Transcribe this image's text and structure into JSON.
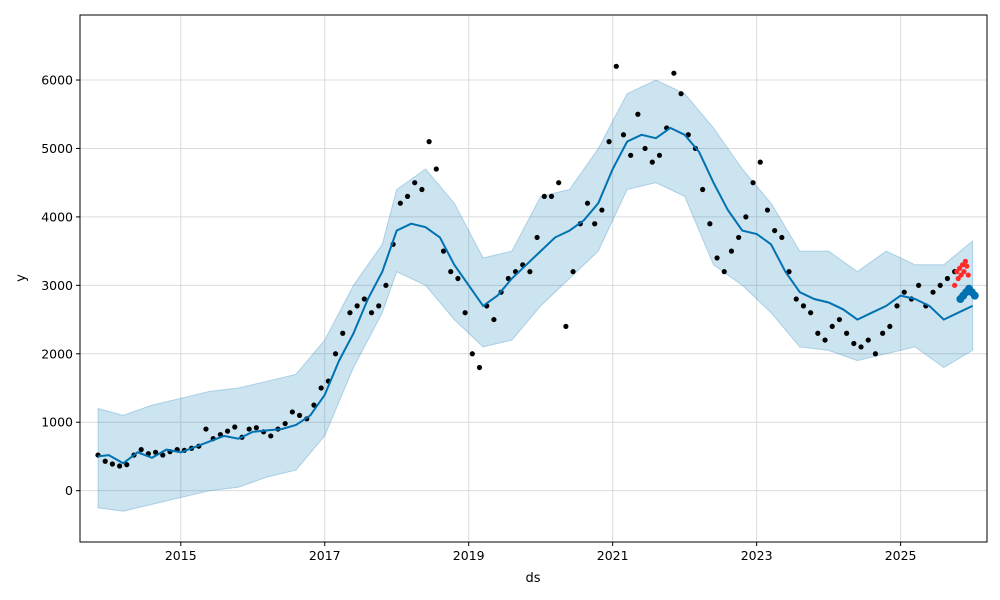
{
  "chart_data": {
    "type": "line",
    "title": "",
    "xlabel": "ds",
    "ylabel": "y",
    "xlim": [
      2013.6,
      2026.2
    ],
    "ylim": [
      -750,
      6950
    ],
    "grid": true,
    "x_ticks": [
      2015,
      2017,
      2019,
      2021,
      2023,
      2025
    ],
    "x_tick_labels": [
      "2015",
      "2017",
      "2019",
      "2021",
      "2023",
      "2025"
    ],
    "y_ticks": [
      0,
      1000,
      2000,
      3000,
      4000,
      5000,
      6000
    ],
    "y_tick_labels": [
      "0",
      "1000",
      "2000",
      "3000",
      "4000",
      "5000",
      "6000"
    ],
    "colors": {
      "actual": "#000000",
      "forecast": "#0072B2",
      "interval_fill": "#0072B2",
      "test_points": "#ff2a2a",
      "grid": "#dcdcdc"
    },
    "series": [
      {
        "kind": "observed_points",
        "x": [
          2013.85,
          2013.95,
          2014.05,
          2014.15,
          2014.25,
          2014.35,
          2014.45,
          2014.55,
          2014.65,
          2014.75,
          2014.85,
          2014.95,
          2015.05,
          2015.15,
          2015.25,
          2015.35,
          2015.45,
          2015.55,
          2015.65,
          2015.75,
          2015.85,
          2015.95,
          2016.05,
          2016.15,
          2016.25,
          2016.35,
          2016.45,
          2016.55,
          2016.65,
          2016.75,
          2016.85,
          2016.95,
          2017.05,
          2017.15,
          2017.25,
          2017.35,
          2017.45,
          2017.55,
          2017.65,
          2017.75,
          2017.85,
          2017.95,
          2018.05,
          2018.15,
          2018.25,
          2018.35,
          2018.45,
          2018.55,
          2018.65,
          2018.75,
          2018.85,
          2018.95,
          2019.05,
          2019.15,
          2019.25,
          2019.35,
          2019.45,
          2019.55,
          2019.65,
          2019.75,
          2019.85,
          2019.95,
          2020.05,
          2020.15,
          2020.25,
          2020.35,
          2020.45,
          2020.55,
          2020.65,
          2020.75,
          2020.85,
          2020.95,
          2021.05,
          2021.15,
          2021.25,
          2021.35,
          2021.45,
          2021.55,
          2021.65,
          2021.75,
          2021.85,
          2021.95,
          2022.05,
          2022.15,
          2022.25,
          2022.35,
          2022.45,
          2022.55,
          2022.65,
          2022.75,
          2022.85,
          2022.95,
          2023.05,
          2023.15,
          2023.25,
          2023.35,
          2023.45,
          2023.55,
          2023.65,
          2023.75,
          2023.85,
          2023.95,
          2024.05,
          2024.15,
          2024.25,
          2024.35,
          2024.45,
          2024.55,
          2024.65,
          2024.75,
          2024.85,
          2024.95,
          2025.05,
          2025.15,
          2025.25,
          2025.35,
          2025.45,
          2025.55,
          2025.65,
          2025.75
        ],
        "y": [
          520,
          430,
          390,
          360,
          380,
          520,
          600,
          540,
          560,
          520,
          570,
          600,
          590,
          620,
          650,
          900,
          760,
          820,
          870,
          930,
          780,
          900,
          920,
          860,
          800,
          900,
          980,
          1150,
          1100,
          1050,
          1250,
          1500,
          1600,
          2000,
          2300,
          2600,
          2700,
          2800,
          2600,
          2700,
          3000,
          3600,
          4200,
          4300,
          4500,
          4400,
          5100,
          4700,
          3500,
          3200,
          3100,
          2600,
          2000,
          1800,
          2700,
          2500,
          2900,
          3100,
          3200,
          3300,
          3200,
          3700,
          4300,
          4300,
          4500,
          2400,
          3200,
          3900,
          4200,
          3900,
          4100,
          5100,
          6200,
          5200,
          4900,
          5500,
          5000,
          4800,
          4900,
          5300,
          6100,
          5800,
          5200,
          5000,
          4400,
          3900,
          3400,
          3200,
          3500,
          3700,
          4000,
          4500,
          4800,
          4100,
          3800,
          3700,
          3200,
          2800,
          2700,
          2600,
          2300,
          2200,
          2400,
          2500,
          2300,
          2150,
          2100,
          2200,
          2000,
          2300,
          2400,
          2700,
          2900,
          2800,
          3000,
          2700,
          2900,
          3000,
          3100,
          3200
        ]
      },
      {
        "kind": "forecast_line",
        "name": "",
        "x": [
          2013.85,
          2014.0,
          2014.2,
          2014.4,
          2014.6,
          2014.8,
          2015.0,
          2015.2,
          2015.4,
          2015.6,
          2015.8,
          2016.0,
          2016.2,
          2016.4,
          2016.6,
          2016.8,
          2017.0,
          2017.2,
          2017.4,
          2017.6,
          2017.8,
          2018.0,
          2018.2,
          2018.4,
          2018.6,
          2018.8,
          2019.0,
          2019.2,
          2019.4,
          2019.6,
          2019.8,
          2020.0,
          2020.2,
          2020.4,
          2020.6,
          2020.8,
          2021.0,
          2021.2,
          2021.4,
          2021.6,
          2021.8,
          2022.0,
          2022.2,
          2022.4,
          2022.6,
          2022.8,
          2023.0,
          2023.2,
          2023.4,
          2023.6,
          2023.8,
          2024.0,
          2024.2,
          2024.4,
          2024.6,
          2024.8,
          2025.0,
          2025.2,
          2025.4,
          2025.6,
          2025.8,
          2026.0
        ],
        "y": [
          500,
          520,
          400,
          560,
          480,
          600,
          560,
          640,
          720,
          800,
          760,
          860,
          880,
          900,
          960,
          1100,
          1400,
          1900,
          2300,
          2800,
          3200,
          3800,
          3900,
          3850,
          3700,
          3300,
          3000,
          2700,
          2850,
          3100,
          3300,
          3500,
          3700,
          3800,
          3950,
          4200,
          4700,
          5100,
          5200,
          5150,
          5300,
          5200,
          4950,
          4500,
          4100,
          3800,
          3750,
          3600,
          3200,
          2900,
          2800,
          2750,
          2650,
          2500,
          2600,
          2700,
          2850,
          2800,
          2700,
          2500,
          2600,
          2700
        ]
      },
      {
        "kind": "uncertainty_band",
        "x": [
          2013.85,
          2014.2,
          2014.6,
          2015.0,
          2015.4,
          2015.8,
          2016.2,
          2016.6,
          2017.0,
          2017.4,
          2017.8,
          2018.0,
          2018.4,
          2018.8,
          2019.2,
          2019.6,
          2020.0,
          2020.4,
          2020.8,
          2021.2,
          2021.6,
          2022.0,
          2022.4,
          2022.8,
          2023.2,
          2023.6,
          2024.0,
          2024.4,
          2024.8,
          2025.2,
          2025.6,
          2026.0
        ],
        "lower": [
          -250,
          -300,
          -200,
          -100,
          0,
          50,
          200,
          300,
          800,
          1800,
          2600,
          3200,
          3000,
          2500,
          2100,
          2200,
          2700,
          3100,
          3500,
          4400,
          4500,
          4300,
          3300,
          3000,
          2600,
          2100,
          2050,
          1900,
          2000,
          2100,
          1800,
          2050
        ],
        "upper": [
          1200,
          1100,
          1250,
          1350,
          1450,
          1500,
          1600,
          1700,
          2200,
          3000,
          3600,
          4400,
          4700,
          4200,
          3400,
          3500,
          4300,
          4400,
          5000,
          5800,
          6000,
          5800,
          5300,
          4700,
          4200,
          3500,
          3500,
          3200,
          3500,
          3300,
          3300,
          3650
        ]
      },
      {
        "kind": "test_points",
        "x": [
          2025.75,
          2025.78,
          2025.8,
          2025.82,
          2025.84,
          2025.86,
          2025.88,
          2025.9,
          2025.92,
          2025.94
        ],
        "y": [
          3000,
          3200,
          3100,
          3250,
          3150,
          3300,
          3200,
          3350,
          3280,
          3150
        ]
      },
      {
        "kind": "forecast_block",
        "x": [
          2025.83,
          2025.87,
          2025.91,
          2025.95,
          2025.99,
          2026.03
        ],
        "y": [
          2800,
          2850,
          2900,
          2950,
          2900,
          2850
        ]
      }
    ]
  }
}
